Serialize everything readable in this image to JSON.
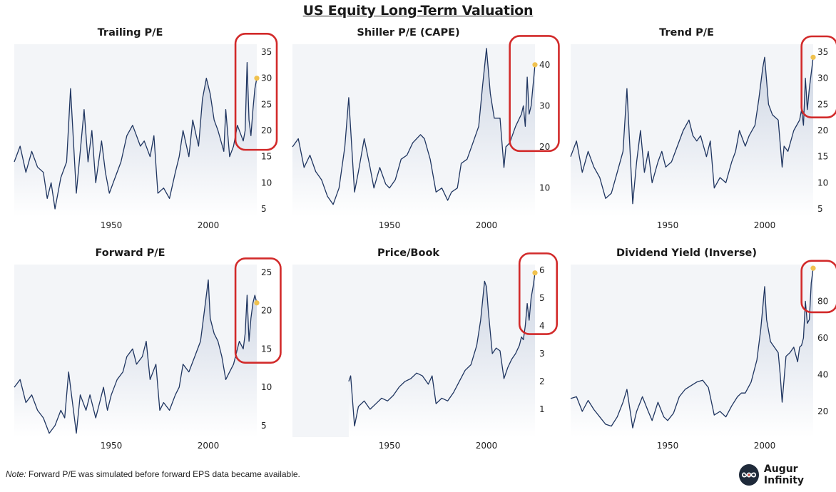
{
  "title": "US Equity Long-Term Valuation",
  "footer": {
    "note_label": "Note:",
    "note_text": "Forward P/E was simulated before forward EPS data became available."
  },
  "brand": {
    "name": "Augur Infinity",
    "logo_icon": "infinity-icon"
  },
  "colors": {
    "line": "#1f3560",
    "fill_top": "#cdd5e3",
    "fill_bottom": "#ffffff",
    "plot_bg": "#f3f5f8",
    "highlight_box": "#d22a2a",
    "latest_point": "#f0c24f"
  },
  "chart_data": [
    {
      "type": "area",
      "title": "Trailing P/E",
      "x_ticks": [
        1950,
        2000
      ],
      "y_ticks": [
        5,
        10,
        15,
        20,
        25,
        30,
        35
      ],
      "xlim": [
        1900,
        2025
      ],
      "ylim": [
        3.5,
        36.5
      ],
      "x": [
        1900,
        1903,
        1906,
        1909,
        1912,
        1915,
        1917,
        1919,
        1921,
        1924,
        1927,
        1929,
        1932,
        1934,
        1936,
        1938,
        1940,
        1942,
        1945,
        1947,
        1949,
        1952,
        1955,
        1958,
        1961,
        1963,
        1965,
        1967,
        1970,
        1972,
        1974,
        1977,
        1980,
        1983,
        1985,
        1987,
        1990,
        1992,
        1995,
        1997,
        1999,
        2001,
        2003,
        2005,
        2008,
        2009,
        2011,
        2013,
        2015,
        2018,
        2019,
        2020,
        2021,
        2022,
        2023,
        2024,
        2025
      ],
      "y": [
        14,
        17,
        12,
        16,
        13,
        12,
        7,
        10,
        5,
        11,
        14,
        28,
        8,
        16,
        24,
        14,
        20,
        10,
        18,
        12,
        8,
        11,
        14,
        19,
        21,
        19,
        17,
        18,
        15,
        19,
        8,
        9,
        7,
        12,
        15,
        20,
        15,
        22,
        17,
        26,
        30,
        27,
        22,
        20,
        16,
        24,
        15,
        17,
        21,
        18,
        20,
        33,
        22,
        19,
        24,
        28,
        30
      ],
      "highlight": {
        "x_from": 2014,
        "x_to": 2025,
        "y_from": 16.3,
        "y_to": 38.5
      },
      "latest": {
        "x": 2025,
        "y": 30
      }
    },
    {
      "type": "area",
      "title": "Shiller P/E (CAPE)",
      "x_ticks": [
        1950,
        2000
      ],
      "y_ticks": [
        10,
        20,
        30,
        40
      ],
      "xlim": [
        1900,
        2025
      ],
      "ylim": [
        3,
        45
      ],
      "x": [
        1900,
        1903,
        1906,
        1909,
        1912,
        1915,
        1918,
        1921,
        1924,
        1927,
        1929,
        1932,
        1934,
        1937,
        1940,
        1942,
        1945,
        1948,
        1950,
        1953,
        1956,
        1959,
        1962,
        1966,
        1968,
        1971,
        1974,
        1977,
        1980,
        1982,
        1985,
        1987,
        1990,
        1993,
        1996,
        1998,
        2000,
        2002,
        2004,
        2007,
        2009,
        2010,
        2012,
        2015,
        2018,
        2019,
        2020,
        2021,
        2022,
        2023,
        2024,
        2025
      ],
      "y": [
        20,
        22,
        15,
        18,
        14,
        12,
        8,
        6,
        10,
        20,
        32,
        9,
        14,
        22,
        15,
        10,
        15,
        11,
        10,
        12,
        17,
        18,
        21,
        23,
        22,
        17,
        9,
        10,
        7,
        9,
        10,
        16,
        17,
        21,
        25,
        35,
        44,
        33,
        27,
        27,
        15,
        20,
        21,
        25,
        28,
        30,
        25,
        37,
        28,
        30,
        35,
        40
      ],
      "highlight": {
        "x_from": 2012,
        "x_to": 2027,
        "y_from": 19,
        "y_to": 47
      },
      "latest": {
        "x": 2025,
        "y": 40
      }
    },
    {
      "type": "area",
      "title": "Trend P/E",
      "x_ticks": [
        1950,
        2000
      ],
      "y_ticks": [
        5,
        10,
        15,
        20,
        25,
        30,
        35
      ],
      "xlim": [
        1900,
        2025
      ],
      "ylim": [
        3.5,
        36.5
      ],
      "x": [
        1900,
        1903,
        1906,
        1909,
        1912,
        1915,
        1918,
        1921,
        1924,
        1927,
        1929,
        1932,
        1934,
        1936,
        1938,
        1940,
        1942,
        1945,
        1947,
        1949,
        1952,
        1955,
        1958,
        1961,
        1963,
        1965,
        1967,
        1970,
        1972,
        1974,
        1977,
        1980,
        1983,
        1985,
        1987,
        1990,
        1992,
        1995,
        1997,
        1999,
        2000,
        2002,
        2004,
        2007,
        2009,
        2010,
        2012,
        2015,
        2018,
        2019,
        2020,
        2021,
        2022,
        2023,
        2024,
        2025
      ],
      "y": [
        15,
        18,
        12,
        16,
        13,
        11,
        7,
        8,
        12,
        16,
        28,
        6,
        14,
        20,
        12,
        16,
        10,
        14,
        16,
        13,
        14,
        17,
        20,
        22,
        19,
        18,
        19,
        15,
        18,
        9,
        11,
        10,
        14,
        16,
        20,
        17,
        19,
        21,
        26,
        32,
        34,
        25,
        23,
        22,
        13,
        17,
        16,
        20,
        22,
        24,
        21,
        30,
        24,
        28,
        31,
        34
      ],
      "highlight": {
        "x_from": 2019,
        "x_to": 2027,
        "y_from": 22.5,
        "y_to": 38
      },
      "latest": {
        "x": 2025,
        "y": 34
      }
    },
    {
      "type": "area",
      "title": "Forward P/E",
      "x_ticks": [
        1950,
        2000
      ],
      "y_ticks": [
        5,
        10,
        15,
        20,
        25
      ],
      "xlim": [
        1900,
        2025
      ],
      "ylim": [
        3.5,
        26
      ],
      "x": [
        1900,
        1903,
        1906,
        1909,
        1912,
        1915,
        1918,
        1921,
        1924,
        1926,
        1928,
        1930,
        1932,
        1934,
        1937,
        1939,
        1942,
        1944,
        1946,
        1948,
        1950,
        1953,
        1956,
        1958,
        1961,
        1963,
        1966,
        1968,
        1970,
        1973,
        1975,
        1977,
        1980,
        1983,
        1985,
        1987,
        1990,
        1993,
        1996,
        1998,
        2000,
        2001,
        2003,
        2005,
        2007,
        2009,
        2011,
        2013,
        2016,
        2018,
        2019,
        2020,
        2021,
        2022,
        2023,
        2024,
        2025
      ],
      "y": [
        10,
        11,
        8,
        9,
        7,
        6,
        4,
        5,
        7,
        6,
        12,
        8,
        4,
        9,
        7,
        9,
        6,
        8,
        10,
        7,
        9,
        11,
        12,
        14,
        15,
        13,
        14,
        16,
        11,
        13,
        7,
        8,
        7,
        9,
        10,
        13,
        12,
        14,
        16,
        20,
        24,
        19,
        17,
        16,
        14,
        11,
        12,
        13,
        16,
        15,
        17,
        22,
        16,
        19,
        21,
        22,
        21
      ],
      "highlight": {
        "x_from": 2014,
        "x_to": 2027,
        "y_from": 13.2,
        "y_to": 26.8
      },
      "latest": {
        "x": 2025,
        "y": 21
      }
    },
    {
      "type": "area",
      "title": "Price/Book",
      "x_ticks": [
        1950,
        2000
      ],
      "y_ticks": [
        1,
        2,
        3,
        4,
        5,
        6
      ],
      "xlim": [
        1900,
        2025
      ],
      "ylim": [
        0,
        6.2
      ],
      "x": [
        1929,
        1930,
        1932,
        1934,
        1937,
        1940,
        1943,
        1946,
        1949,
        1952,
        1955,
        1958,
        1961,
        1964,
        1967,
        1970,
        1972,
        1974,
        1977,
        1980,
        1983,
        1986,
        1989,
        1992,
        1995,
        1997,
        1999,
        2000,
        2001,
        2003,
        2005,
        2007,
        2009,
        2011,
        2013,
        2015,
        2017,
        2018,
        2019,
        2020,
        2021,
        2022,
        2023,
        2024,
        2025
      ],
      "y": [
        2,
        2.2,
        0.4,
        1.1,
        1.3,
        1,
        1.2,
        1.4,
        1.3,
        1.5,
        1.8,
        2,
        2.1,
        2.3,
        2.2,
        1.9,
        2.2,
        1.2,
        1.4,
        1.3,
        1.6,
        2,
        2.4,
        2.6,
        3.3,
        4.2,
        5.6,
        5.4,
        4.5,
        3,
        3.2,
        3.1,
        2.1,
        2.5,
        2.8,
        3,
        3.3,
        3.6,
        3.5,
        4,
        4.8,
        4.2,
        5,
        5.4,
        5.9
      ],
      "highlight": {
        "x_from": 2017,
        "x_to": 2026,
        "y_from": 3.7,
        "y_to": 6.6
      },
      "latest": {
        "x": 2025,
        "y": 5.9
      }
    },
    {
      "type": "area",
      "title": "Dividend Yield (Inverse)",
      "x_ticks": [
        1950,
        2000
      ],
      "y_ticks": [
        20,
        40,
        60,
        80
      ],
      "xlim": [
        1900,
        2025
      ],
      "ylim": [
        6,
        100
      ],
      "x": [
        1900,
        1903,
        1906,
        1909,
        1912,
        1915,
        1918,
        1921,
        1924,
        1927,
        1929,
        1932,
        1934,
        1937,
        1940,
        1942,
        1945,
        1948,
        1950,
        1953,
        1956,
        1959,
        1962,
        1965,
        1968,
        1971,
        1974,
        1977,
        1980,
        1983,
        1986,
        1988,
        1990,
        1993,
        1996,
        1998,
        2000,
        2001,
        2003,
        2005,
        2007,
        2008,
        2009,
        2011,
        2013,
        2015,
        2017,
        2018,
        2019,
        2020,
        2021,
        2022,
        2023,
        2024,
        2025
      ],
      "y": [
        27,
        28,
        20,
        26,
        21,
        17,
        13,
        12,
        17,
        25,
        32,
        11,
        20,
        28,
        20,
        15,
        25,
        17,
        15,
        19,
        28,
        32,
        34,
        36,
        37,
        33,
        18,
        20,
        17,
        23,
        28,
        30,
        30,
        36,
        48,
        65,
        88,
        70,
        58,
        55,
        52,
        40,
        25,
        50,
        52,
        55,
        47,
        55,
        56,
        60,
        80,
        68,
        70,
        90,
        98
      ],
      "highlight": {
        "x_from": 2019,
        "x_to": 2027,
        "y_from": 74,
        "y_to": 102
      },
      "latest": {
        "x": 2025,
        "y": 98
      }
    }
  ]
}
